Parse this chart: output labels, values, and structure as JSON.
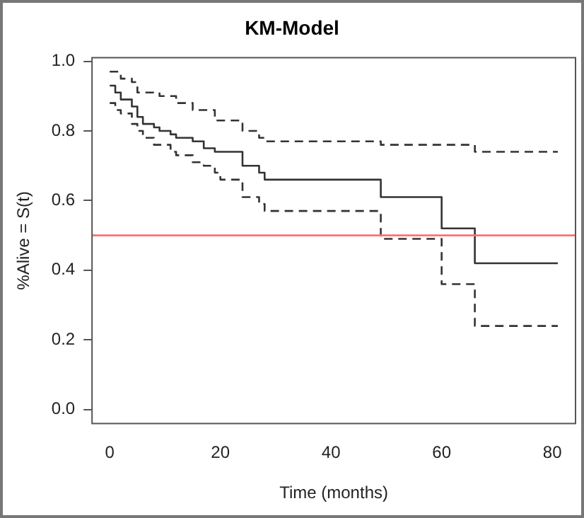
{
  "chart_data": {
    "type": "step",
    "title": "KM-Model",
    "xlabel": "Time (months)",
    "ylabel": "%Alive = S(t)",
    "xlim": [
      -3.2,
      84.2
    ],
    "xticks": [
      0,
      20,
      40,
      60,
      80
    ],
    "ylim": [
      -0.04,
      1.01
    ],
    "yticks": [
      {
        "value": 0,
        "label": "0.0"
      },
      0.2,
      0.4,
      0.6,
      0.8,
      {
        "value": 1,
        "label": "1.0"
      }
    ],
    "series": [
      {
        "color": "#333333",
        "line_style": "solid",
        "x": [
          0,
          1,
          2,
          4,
          5,
          6,
          8,
          9,
          11,
          12,
          15,
          17,
          19,
          24,
          27,
          28,
          49,
          60,
          66,
          81
        ],
        "values": [
          0.93,
          0.91,
          0.89,
          0.87,
          0.84,
          0.82,
          0.81,
          0.8,
          0.79,
          0.78,
          0.77,
          0.75,
          0.74,
          0.7,
          0.68,
          0.66,
          0.61,
          0.52,
          0.42,
          0.42
        ]
      },
      {
        "color": "#333333",
        "line_style": "dashed",
        "x": [
          0,
          2,
          4,
          5,
          9,
          12,
          15,
          19,
          24,
          27,
          28,
          49,
          66,
          81
        ],
        "values": [
          0.97,
          0.95,
          0.94,
          0.91,
          0.9,
          0.88,
          0.86,
          0.83,
          0.8,
          0.78,
          0.77,
          0.76,
          0.74,
          0.74
        ]
      },
      {
        "color": "#333333",
        "line_style": "dashed",
        "x": [
          0,
          1,
          2,
          4,
          5,
          6,
          8,
          11,
          12,
          15,
          17,
          19,
          20,
          24,
          27,
          28,
          49,
          60,
          66,
          81
        ],
        "values": [
          0.88,
          0.86,
          0.85,
          0.82,
          0.8,
          0.78,
          0.76,
          0.74,
          0.73,
          0.71,
          0.7,
          0.68,
          0.66,
          0.61,
          0.59,
          0.57,
          0.49,
          0.36,
          0.24,
          0.24
        ]
      }
    ],
    "ref_lines": [
      {
        "axis": "y",
        "value": 0.5,
        "color": "#ff7070"
      }
    ],
    "grid": false,
    "legend": false
  }
}
